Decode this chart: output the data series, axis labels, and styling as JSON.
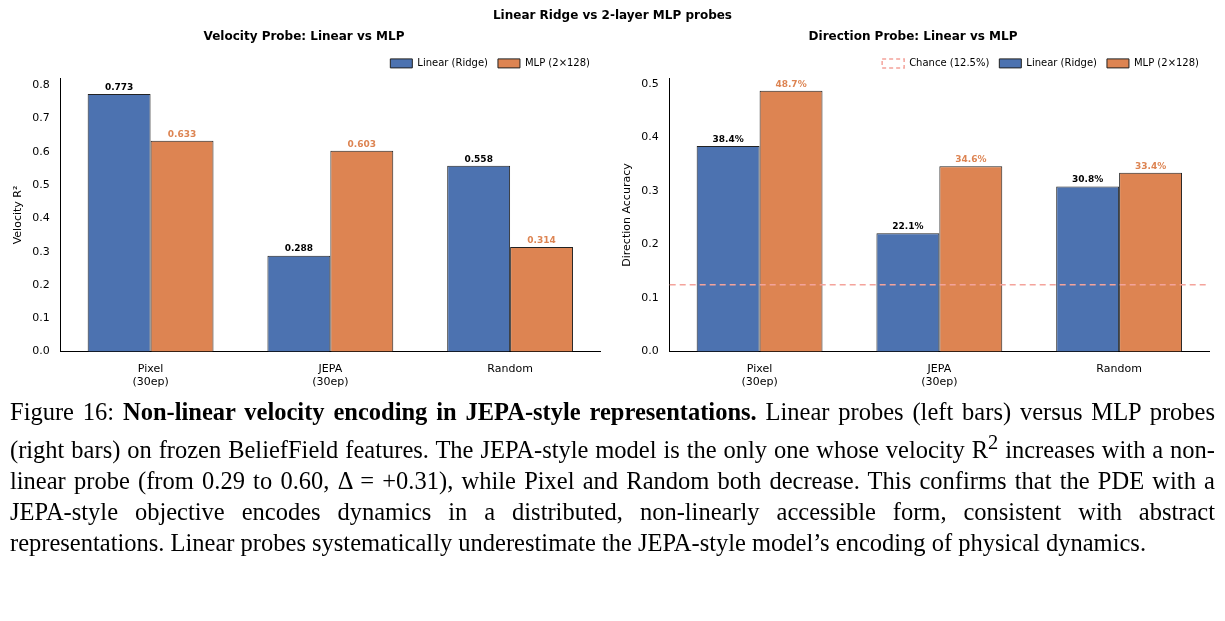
{
  "chart_data": [
    {
      "type": "other",
      "title": "Linear Ridge vs 2-layer MLP probes"
    },
    {
      "type": "bar",
      "title": "Velocity Probe: Linear vs MLP",
      "ylabel": "Velocity R²",
      "categories": [
        "Pixel\n(30ep)",
        "JEPA\n(30ep)",
        "Random"
      ],
      "series": [
        {
          "name": "Linear (Ridge)",
          "color": "#4c72b0",
          "values": [
            0.773,
            0.288,
            0.558
          ]
        },
        {
          "name": "MLP (2×128)",
          "color": "#dd8452",
          "values": [
            0.633,
            0.603,
            0.314
          ]
        }
      ],
      "ylim": [
        0,
        0.82
      ],
      "yticks": [
        {
          "value": 0,
          "label": "0.0"
        },
        0.1,
        0.2,
        0.3,
        0.4,
        0.5,
        0.6,
        0.7,
        0.8
      ],
      "data_labels": true,
      "grid": false,
      "legend": "top right"
    },
    {
      "type": "bar",
      "title": "Direction Probe: Linear vs MLP",
      "ylabel": "Direction Accuracy",
      "categories": [
        "Pixel\n(30ep)",
        "JEPA\n(30ep)",
        "Random"
      ],
      "series": [
        {
          "name": "Linear (Ridge)",
          "color": "#4c72b0",
          "values": [
            0.384,
            0.221,
            0.308
          ],
          "value_labels": [
            "38.4%",
            "22.1%",
            "30.8%"
          ]
        },
        {
          "name": "MLP (2×128)",
          "color": "#dd8452",
          "values": [
            0.487,
            0.346,
            0.334
          ],
          "value_labels": [
            "48.7%",
            "34.6%",
            "33.4%"
          ]
        }
      ],
      "ylim": [
        0,
        0.51
      ],
      "yticks": [
        {
          "value": 0,
          "label": "0.0"
        },
        0.1,
        0.2,
        0.3,
        0.4,
        0.5
      ],
      "grid": false,
      "legend": "top right",
      "ref_lines": [
        {
          "axis": "y",
          "value": 0.125,
          "label": "Chance (12.5%)",
          "color": "#f4a39b",
          "line_style": "dashed"
        }
      ]
    },
    {
      "type": "other",
      "annotations": [
        "Figure 16: ",
        "Non-linear velocity encoding in JEPA-style representations.",
        " Linear probes (left bars) versus MLP probes (right bars) on frozen BeliefField features. The JEPA-style model is the only one whose velocity R$^{2}$ increases with a non-linear probe (from 0.29 to 0.60, Δ = +0.31), while Pixel and Random both decrease. This confirms that the PDE with a JEPA-style objective encodes dynamics in a distributed, non-linearly accessible form, consistent with abstract representations. Linear probes systematically underestimate the JEPA-style model’s encoding of physical dynamics."
      ]
    }
  ]
}
